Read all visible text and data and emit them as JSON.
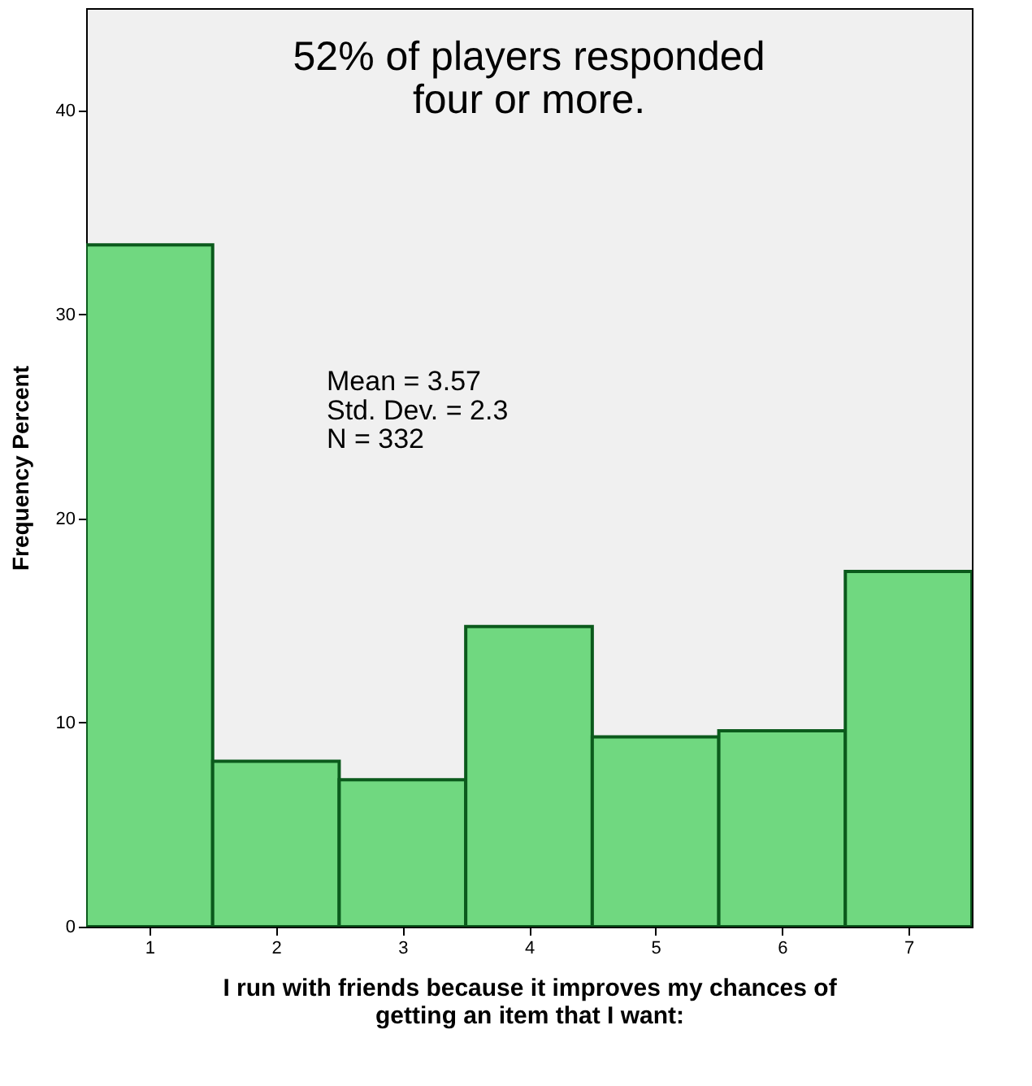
{
  "chart_data": {
    "type": "histogram",
    "xlabel": "I run with friends because it improves my chances of\ngetting an item that I want:",
    "ylabel": "Frequency Percent",
    "bins": [
      0.5,
      1.5,
      2.5,
      3.5,
      4.5,
      5.5,
      6.5,
      7.5
    ],
    "values": [
      33.4,
      8.1,
      7.2,
      14.7,
      9.3,
      9.6,
      17.4
    ],
    "color": "#70d880",
    "xlim": [
      0.5,
      7.5
    ],
    "xticks": [
      1,
      2,
      3,
      4,
      5,
      6,
      7
    ],
    "ylim": [
      0,
      45
    ],
    "yticks": [
      0,
      10,
      20,
      30,
      40
    ],
    "annotations": [
      "52% of players responded\nfour or more.",
      "Mean = 3.57\nStd. Dev. = 2.3\nN = 332"
    ]
  }
}
